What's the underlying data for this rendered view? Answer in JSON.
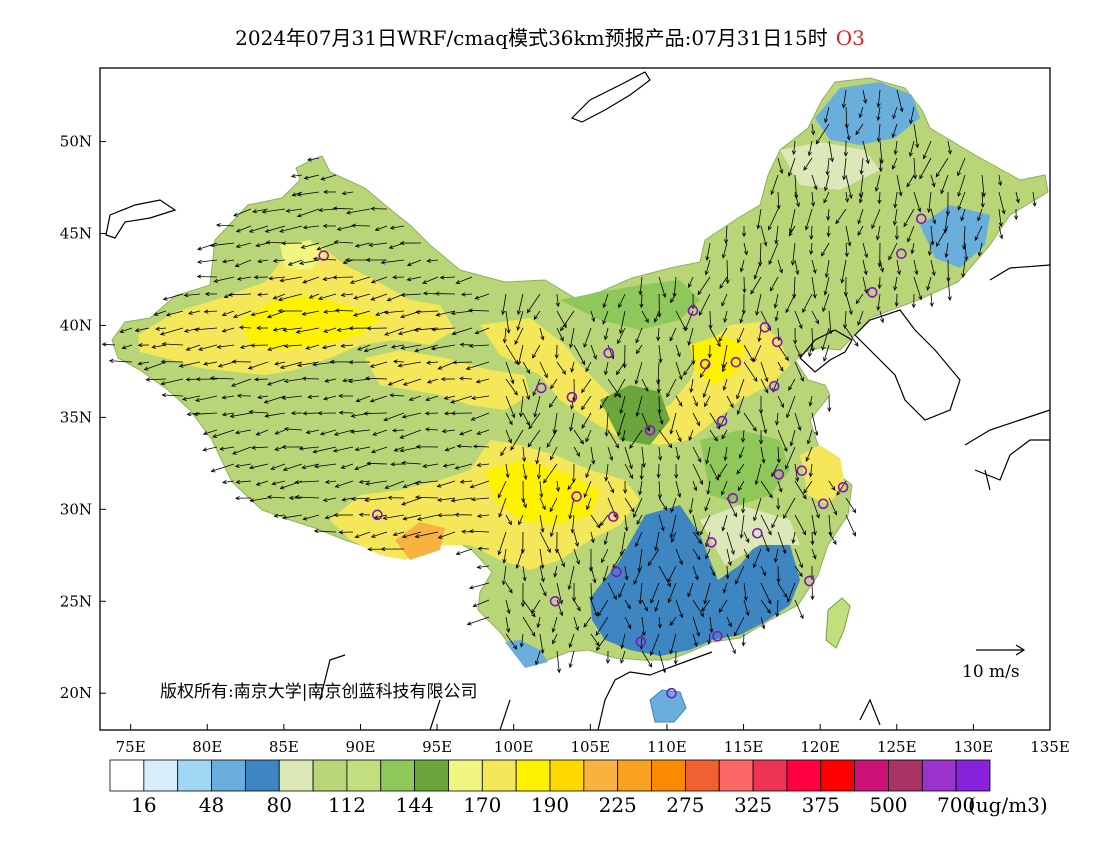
{
  "title": {
    "text": "2024年07月31日WRF/cmaq模式36km预报产品:07月31日15时",
    "pollutant": "O3"
  },
  "axes": {
    "lat_labels": [
      "50N",
      "45N",
      "40N",
      "35N",
      "30N",
      "25N",
      "20N"
    ],
    "lon_labels": [
      "75E",
      "80E",
      "85E",
      "90E",
      "95E",
      "100E",
      "105E",
      "110E",
      "115E",
      "120E",
      "125E",
      "130E",
      "135E"
    ]
  },
  "copyright": "版权所有:南京大学|南京创蓝科技有限公司",
  "wind_scale": {
    "label": "10 m/s"
  },
  "colorbar": {
    "unit": "(ug/m3)",
    "labels": [
      "16",
      "48",
      "80",
      "112",
      "144",
      "170",
      "190",
      "225",
      "275",
      "325",
      "375",
      "500",
      "700"
    ],
    "colors": [
      "#ffffff",
      "#d6effb",
      "#a0d8f4",
      "#6aaedc",
      "#3d86c2",
      "#dde8b8",
      "#b8d678",
      "#c2df80",
      "#8fc85a",
      "#6aa63c",
      "#f0f680",
      "#f4e85a",
      "#fff200",
      "#ffd800",
      "#f7b240",
      "#f9a220",
      "#fc8a00",
      "#f06030",
      "#ff6666",
      "#ee3355",
      "#ff0044",
      "#ff0000",
      "#cc1177",
      "#aa3366",
      "#9933cc",
      "#8822dd"
    ]
  },
  "stations": [
    {
      "lon": 87.6,
      "lat": 43.8
    },
    {
      "lon": 126.6,
      "lat": 45.8
    },
    {
      "lon": 125.3,
      "lat": 43.9
    },
    {
      "lon": 123.4,
      "lat": 41.8
    },
    {
      "lon": 111.7,
      "lat": 40.8
    },
    {
      "lon": 116.4,
      "lat": 39.9
    },
    {
      "lon": 117.2,
      "lat": 39.1
    },
    {
      "lon": 112.5,
      "lat": 37.9
    },
    {
      "lon": 114.5,
      "lat": 38.0
    },
    {
      "lon": 106.2,
      "lat": 38.5
    },
    {
      "lon": 101.8,
      "lat": 36.6
    },
    {
      "lon": 103.8,
      "lat": 36.1
    },
    {
      "lon": 117.0,
      "lat": 36.7
    },
    {
      "lon": 108.9,
      "lat": 34.3
    },
    {
      "lon": 113.6,
      "lat": 34.8
    },
    {
      "lon": 117.3,
      "lat": 31.9
    },
    {
      "lon": 118.8,
      "lat": 32.1
    },
    {
      "lon": 121.5,
      "lat": 31.2
    },
    {
      "lon": 120.2,
      "lat": 30.3
    },
    {
      "lon": 114.3,
      "lat": 30.6
    },
    {
      "lon": 104.1,
      "lat": 30.7
    },
    {
      "lon": 106.5,
      "lat": 29.6
    },
    {
      "lon": 91.1,
      "lat": 29.7
    },
    {
      "lon": 112.9,
      "lat": 28.2
    },
    {
      "lon": 115.9,
      "lat": 28.7
    },
    {
      "lon": 106.7,
      "lat": 26.6
    },
    {
      "lon": 119.3,
      "lat": 26.1
    },
    {
      "lon": 102.7,
      "lat": 25.0
    },
    {
      "lon": 108.3,
      "lat": 22.8
    },
    {
      "lon": 113.3,
      "lat": 23.1
    },
    {
      "lon": 110.3,
      "lat": 20.0
    }
  ]
}
